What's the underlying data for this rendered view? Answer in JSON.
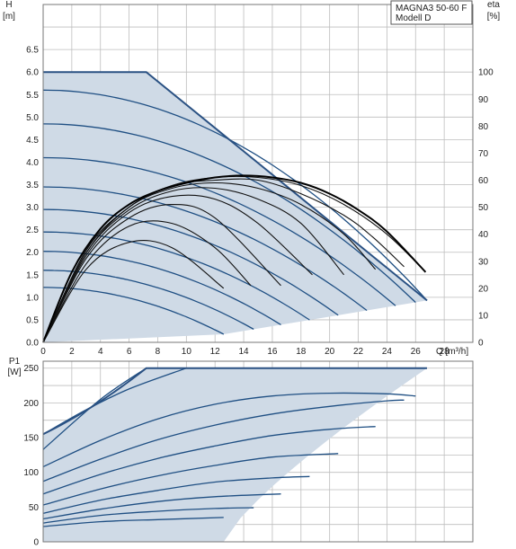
{
  "legend": {
    "line1": "MAGNA3 50-60 F",
    "line2": "Modell D"
  },
  "chart_data": [
    {
      "type": "line",
      "panel": "head",
      "xlabel": "Q [m³/h]",
      "ylabel_left": [
        "H",
        "[m]"
      ],
      "ylabel_right": [
        "eta",
        "[%]"
      ],
      "xlim": [
        0,
        30
      ],
      "ylim": [
        0,
        7.5
      ],
      "y2lim": [
        0,
        125
      ],
      "x_ticks": [
        0,
        2,
        4,
        6,
        8,
        10,
        12,
        14,
        16,
        18,
        20,
        22,
        24,
        26,
        28
      ],
      "y_ticks": [
        "0.0",
        "0.5",
        "1.0",
        "1.5",
        "2.0",
        "2.5",
        "3.0",
        "3.5",
        "4.0",
        "4.5",
        "5.0",
        "5.5",
        "6.0",
        "6.5"
      ],
      "y2_ticks": [
        "0",
        "10",
        "20",
        "30",
        "40",
        "50",
        "60",
        "70",
        "80",
        "90",
        "100"
      ],
      "envelope": [
        [
          0,
          6.0
        ],
        [
          7.2,
          6.0
        ],
        [
          26.8,
          0.93
        ],
        [
          12.6,
          0.18
        ],
        [
          0,
          0
        ]
      ],
      "h_curves_H0": [
        1.22,
        1.6,
        2.02,
        2.45,
        2.95,
        3.45,
        4.1,
        4.85,
        5.6
      ],
      "h_curves_Qend": [
        12.6,
        14.7,
        16.6,
        18.6,
        20.6,
        22.6,
        24.6,
        26.0,
        26.8
      ],
      "eta_curves": [
        {
          "Q": [
            0,
            3,
            6,
            9,
            12.6
          ],
          "eta": [
            0,
            27,
            37,
            35,
            20
          ]
        },
        {
          "Q": [
            0,
            3,
            6,
            9,
            12,
            14.5
          ],
          "eta": [
            0,
            29,
            43,
            44,
            35,
            21
          ]
        },
        {
          "Q": [
            0,
            3,
            6,
            9,
            12,
            16.6
          ],
          "eta": [
            0,
            31,
            46,
            51,
            46,
            21
          ]
        },
        {
          "Q": [
            0,
            3,
            6,
            9,
            12,
            15,
            18.8
          ],
          "eta": [
            0,
            32,
            48,
            54,
            53,
            44,
            25
          ]
        },
        {
          "Q": [
            0,
            3,
            6,
            9,
            12,
            15,
            18,
            21
          ],
          "eta": [
            0,
            33,
            49,
            56,
            57,
            53,
            44,
            25
          ]
        },
        {
          "Q": [
            0,
            3,
            6,
            9,
            12,
            15,
            18,
            21,
            23.2
          ],
          "eta": [
            0,
            33,
            50,
            57,
            59,
            57,
            51,
            40,
            27
          ]
        },
        {
          "Q": [
            0,
            3,
            6,
            9,
            12,
            15,
            18,
            21,
            23,
            25.2
          ],
          "eta": [
            0,
            34,
            50,
            58,
            60,
            60,
            55,
            47,
            39,
            28
          ]
        },
        {
          "Q": [
            0,
            3,
            6,
            9,
            12,
            15,
            18,
            21,
            24,
            26.7
          ],
          "eta": [
            0,
            34,
            50,
            58,
            61,
            61,
            58,
            51,
            40,
            26
          ]
        }
      ],
      "eta_max": {
        "Q": [
          0,
          2,
          4,
          6,
          8,
          10,
          12,
          14,
          16,
          18,
          20,
          22,
          24,
          26.7
        ],
        "eta": [
          0,
          26,
          42,
          51,
          56,
          59,
          61,
          61.7,
          61,
          59,
          55,
          49,
          41,
          26
        ]
      }
    },
    {
      "type": "line",
      "panel": "power",
      "xlabel": "Q [m³/h]",
      "ylabel_left": [
        "P1",
        "[W]"
      ],
      "xlim": [
        0,
        30
      ],
      "ylim": [
        0,
        260
      ],
      "y_ticks": [
        "0",
        "50",
        "100",
        "150",
        "200",
        "250"
      ],
      "envelope": [
        [
          0,
          155
        ],
        [
          7.2,
          250
        ],
        [
          26.8,
          250
        ],
        [
          12.6,
          0
        ],
        [
          0,
          0
        ]
      ],
      "p_curves": [
        {
          "Q": [
            0,
            4,
            8,
            12.6
          ],
          "P": [
            22,
            29,
            32,
            35
          ]
        },
        {
          "Q": [
            0,
            4,
            8,
            12,
            14.7
          ],
          "P": [
            27,
            38,
            44,
            48,
            49
          ]
        },
        {
          "Q": [
            0,
            4,
            8,
            12,
            16.6
          ],
          "P": [
            33,
            47,
            58,
            65,
            69
          ]
        },
        {
          "Q": [
            0,
            4,
            8,
            12,
            16,
            18.6
          ],
          "P": [
            41,
            60,
            74,
            86,
            92,
            94
          ]
        },
        {
          "Q": [
            0,
            4,
            8,
            12,
            16,
            20.6
          ],
          "P": [
            53,
            76,
            95,
            110,
            122,
            127
          ]
        },
        {
          "Q": [
            0,
            4,
            8,
            12,
            16,
            20,
            23.2
          ],
          "P": [
            69,
            97,
            120,
            138,
            153,
            162,
            166
          ]
        },
        {
          "Q": [
            0,
            4,
            8,
            12,
            16,
            20,
            24,
            25.2
          ],
          "P": [
            87,
            119,
            147,
            168,
            184,
            195,
            203,
            204
          ]
        },
        {
          "Q": [
            0,
            4,
            8,
            12,
            16,
            20,
            24,
            26
          ],
          "P": [
            108,
            146,
            177,
            198,
            210,
            214,
            213,
            210
          ]
        },
        {
          "Q": [
            0,
            4,
            7.2
          ],
          "P": [
            133,
            205,
            250
          ]
        },
        {
          "Q": [
            0,
            3,
            6,
            10
          ],
          "P": [
            155,
            190,
            220,
            250
          ]
        }
      ]
    }
  ]
}
